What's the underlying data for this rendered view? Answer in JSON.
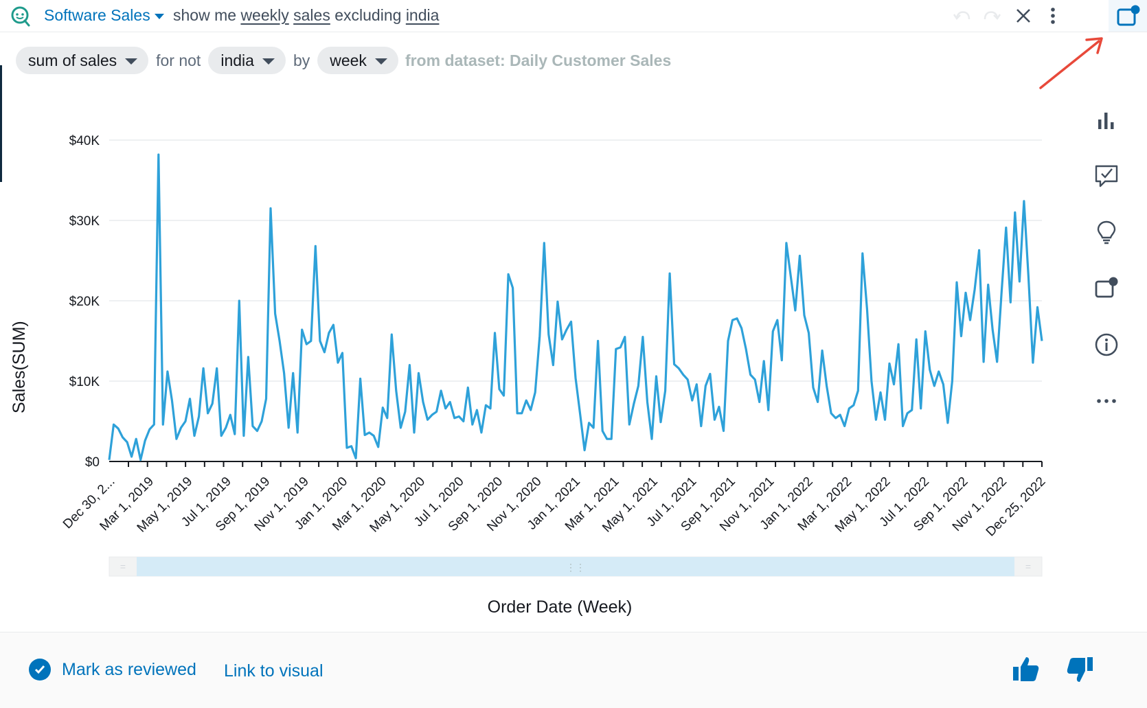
{
  "topbar": {
    "topic": "Software Sales",
    "query_prefix": "show me ",
    "query_w1": "weekly",
    "query_w2": "sales",
    "query_mid": " excluding ",
    "query_w3": "india"
  },
  "chips": {
    "measure": "sum of sales",
    "conn1": "for not",
    "filter": "india",
    "conn2": "by",
    "groupby": "week",
    "dataset": "from dataset: Daily Customer Sales"
  },
  "chart_data": {
    "type": "line",
    "xlabel": "Order Date (Week)",
    "ylabel": "Sales(SUM)",
    "ylim": [
      0,
      40000
    ],
    "y_ticks": [
      "$0",
      "$10K",
      "$20K",
      "$30K",
      "$40K"
    ],
    "x_tick_labels": [
      "Dec 30, 2...",
      "Mar 1, 2019",
      "May 1, 2019",
      "Jul 1, 2019",
      "Sep 1, 2019",
      "Nov 1, 2019",
      "Jan 1, 2020",
      "Mar 1, 2020",
      "May 1, 2020",
      "Jul 1, 2020",
      "Sep 1, 2020",
      "Nov 1, 2020",
      "Jan 1, 2021",
      "Mar 1, 2021",
      "May 1, 2021",
      "Jul 1, 2021",
      "Sep 1, 2021",
      "Nov 1, 2021",
      "Jan 1, 2022",
      "Mar 1, 2022",
      "May 1, 2022",
      "Jul 1, 2022",
      "Sep 1, 2022",
      "Nov 1, 2022",
      "Dec 25, 2022"
    ],
    "series": [
      {
        "color": "#2ea1d9",
        "values": [
          200,
          4600,
          4100,
          3000,
          2400,
          600,
          2800,
          200,
          2600,
          4000,
          4600,
          38200,
          4600,
          11200,
          7600,
          2800,
          4200,
          5000,
          7800,
          3200,
          5600,
          11600,
          6000,
          7200,
          11600,
          3200,
          4200,
          5800,
          3400,
          20000,
          3200,
          13000,
          4400,
          3800,
          5000,
          7800,
          31500,
          18400,
          15000,
          11000,
          4200,
          11000,
          3600,
          16400,
          14600,
          15000,
          26800,
          15000,
          13600,
          16000,
          17000,
          12300,
          13500,
          1700,
          1900,
          400,
          10300,
          3300,
          3600,
          3200,
          1800,
          6700,
          5400,
          15800,
          8800,
          4200,
          6200,
          12000,
          3600,
          11000,
          7400,
          5200,
          5800,
          6200,
          8800,
          6600,
          7400,
          5400,
          5600,
          5000,
          9200,
          4600,
          6400,
          3600,
          7000,
          6600,
          16000,
          9000,
          8200,
          23300,
          21600,
          6000,
          6000,
          7600,
          6400,
          8600,
          15600,
          27200,
          15800,
          12000,
          19900,
          15200,
          16400,
          17400,
          10400,
          6000,
          1400,
          4800,
          4200,
          15000,
          3800,
          2800,
          2800,
          14000,
          14200,
          15500,
          4600,
          7200,
          9400,
          15500,
          7400,
          2800,
          10600,
          4900,
          8800,
          23400,
          12100,
          11600,
          10800,
          10200,
          7600,
          9600,
          4400,
          9400,
          10900,
          5200,
          6800,
          3800,
          15000,
          17600,
          17800,
          16600,
          14000,
          10800,
          10200,
          7400,
          12500,
          6400,
          16200,
          17600,
          12600,
          27200,
          23000,
          18800,
          25600,
          18200,
          16000,
          9200,
          7400,
          13800,
          9400,
          6000,
          5400,
          5800,
          4400,
          6600,
          7000,
          8800,
          25900,
          19000,
          10000,
          5200,
          8600,
          5200,
          12200,
          9600,
          14600,
          4400,
          6000,
          6400,
          15200,
          6600,
          16200,
          11400,
          9400,
          11200,
          9600,
          4800,
          10000,
          22300,
          15600,
          21000,
          17600,
          21400,
          26300,
          12400,
          22000,
          16400,
          12400,
          21000,
          29100,
          19800,
          31000,
          22400,
          32400,
          23000,
          12300,
          19200,
          15000
        ]
      }
    ]
  },
  "footer": {
    "reviewed": "Mark as reviewed",
    "link": "Link to visual"
  }
}
